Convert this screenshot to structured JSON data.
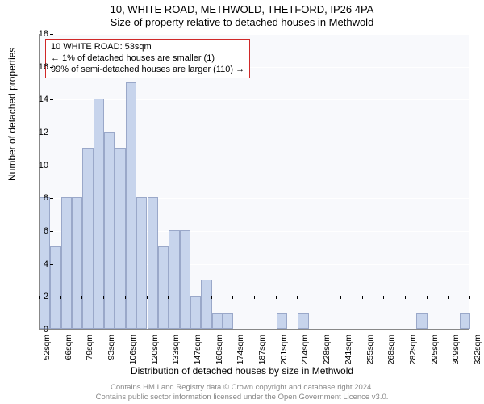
{
  "title_main": "10, WHITE ROAD, METHWOLD, THETFORD, IP26 4PA",
  "title_sub": "Size of property relative to detached houses in Methwold",
  "ylabel": "Number of detached properties",
  "xlabel": "Distribution of detached houses by size in Methwold",
  "chart": {
    "type": "histogram",
    "background_color": "#f8f9fc",
    "grid_color": "#ffffff",
    "bar_fill": "#c7d4ec",
    "bar_edge": "#9aa8c9",
    "axis_fontsize": 11,
    "label_fontsize": 12,
    "title_fontsize": 13,
    "ylim": [
      0,
      18
    ],
    "ytick_step": 2,
    "yticks": [
      0,
      2,
      4,
      6,
      8,
      10,
      12,
      14,
      16,
      18
    ],
    "xticks": [
      "52sqm",
      "66sqm",
      "79sqm",
      "93sqm",
      "106sqm",
      "120sqm",
      "133sqm",
      "147sqm",
      "160sqm",
      "174sqm",
      "187sqm",
      "201sqm",
      "214sqm",
      "228sqm",
      "241sqm",
      "255sqm",
      "268sqm",
      "282sqm",
      "295sqm",
      "309sqm",
      "322sqm"
    ],
    "bar_values": [
      8,
      5,
      8,
      8,
      11,
      14,
      12,
      11,
      15,
      8,
      8,
      5,
      6,
      6,
      2,
      3,
      1,
      1,
      0,
      0,
      0,
      0,
      1,
      0,
      1,
      0,
      0,
      0,
      0,
      0,
      0,
      0,
      0,
      0,
      0,
      1,
      0,
      0,
      0,
      1
    ]
  },
  "annotation": {
    "line1": "10 WHITE ROAD: 53sqm",
    "line2": "← 1% of detached houses are smaller (1)",
    "line3": "99% of semi-detached houses are larger (110) →",
    "border_color": "#d02828",
    "background_color": "#ffffff",
    "fontsize": 11
  },
  "footer": {
    "line1": "Contains HM Land Registry data © Crown copyright and database right 2024.",
    "line2": "Contains public sector information licensed under the Open Government Licence v3.0.",
    "color": "#888888",
    "fontsize": 9.5
  }
}
